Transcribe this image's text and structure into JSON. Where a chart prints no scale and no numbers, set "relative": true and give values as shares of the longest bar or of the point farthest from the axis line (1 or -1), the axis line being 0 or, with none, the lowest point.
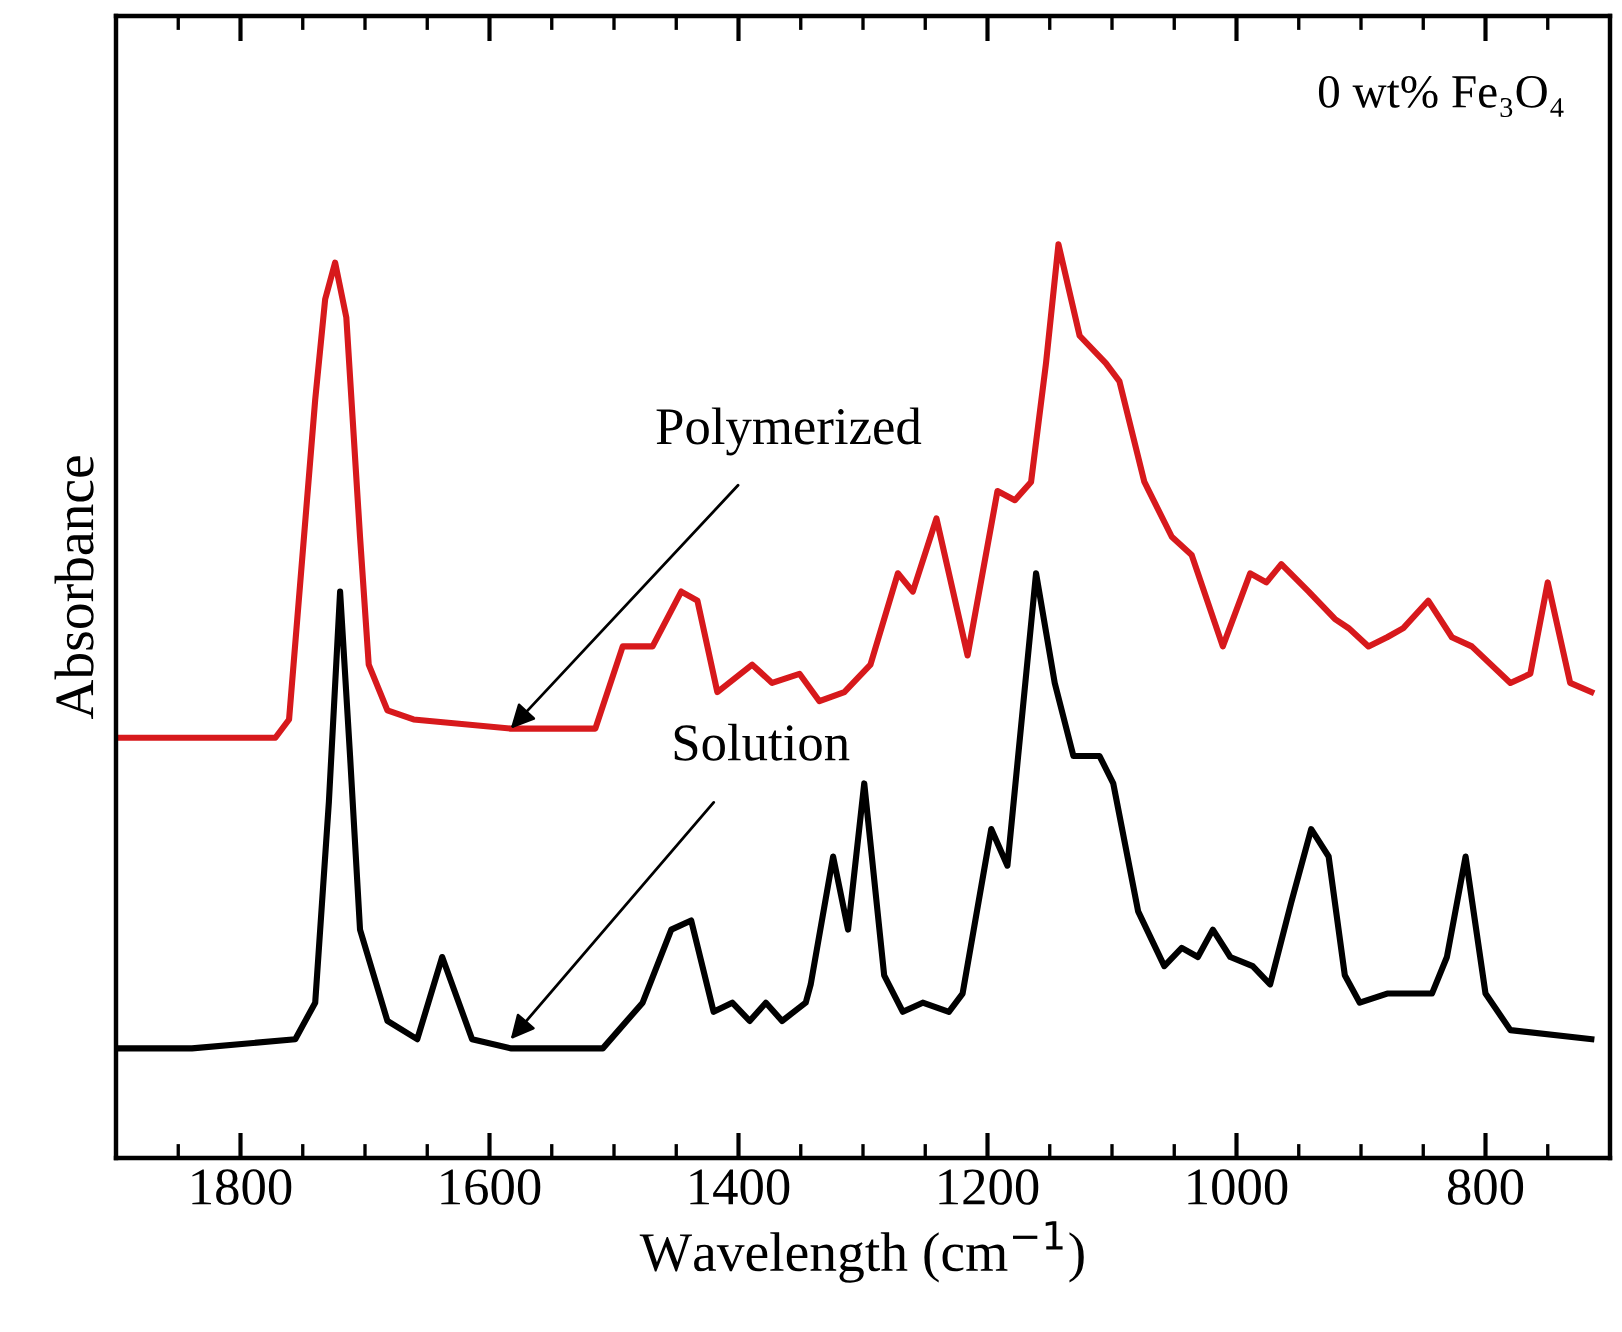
{
  "chart_data": {
    "type": "line",
    "relative": true,
    "xlabel": "Wavelength (cm$^{−1}$)",
    "ylabel": "Absorbance",
    "xlim": [
      1900,
      700
    ],
    "xticks": [
      1800,
      1600,
      1400,
      1200,
      1000,
      800
    ],
    "tick_labels": "x",
    "grid": false,
    "legend": false,
    "marker": "none",
    "line_style": "solid",
    "annotations": [
      "0 wt% Fe₃O₄",
      {
        "text": "Polymerized",
        "x": 1583,
        "y": 0.47
      },
      {
        "text": "Solution",
        "x": 1583,
        "y": 0.13
      }
    ],
    "series": [
      {
        "color": "#d7191c",
        "x": [
          1900,
          1772,
          1761,
          1740,
          1732,
          1724,
          1715,
          1704,
          1697,
          1682,
          1661,
          1583,
          1515,
          1493,
          1469,
          1446,
          1433,
          1417,
          1389,
          1373,
          1351,
          1335,
          1315,
          1294,
          1272,
          1260,
          1241,
          1216,
          1192,
          1178,
          1165,
          1153,
          1143,
          1126,
          1105,
          1094,
          1074,
          1052,
          1036,
          1011,
          989,
          976,
          964,
          942,
          921,
          910,
          894,
          879,
          866,
          846,
          827,
          811,
          780,
          764,
          750,
          732,
          715
        ],
        "values": [
          0.46,
          0.46,
          0.48,
          0.83,
          0.94,
          0.98,
          0.92,
          0.68,
          0.54,
          0.49,
          0.48,
          0.47,
          0.47,
          0.56,
          0.56,
          0.62,
          0.61,
          0.51,
          0.54,
          0.52,
          0.53,
          0.5,
          0.51,
          0.54,
          0.64,
          0.62,
          0.7,
          0.55,
          0.73,
          0.72,
          0.74,
          0.87,
          1.0,
          0.9,
          0.87,
          0.85,
          0.74,
          0.68,
          0.66,
          0.56,
          0.64,
          0.63,
          0.65,
          0.62,
          0.59,
          0.58,
          0.56,
          0.57,
          0.58,
          0.61,
          0.57,
          0.56,
          0.52,
          0.53,
          0.63,
          0.52,
          0.51
        ]
      },
      {
        "color": "#000000",
        "x": [
          1900,
          1839,
          1756,
          1740,
          1729,
          1720,
          1712,
          1704,
          1682,
          1658,
          1638,
          1614,
          1583,
          1509,
          1477,
          1454,
          1438,
          1420,
          1405,
          1391,
          1378,
          1365,
          1346,
          1342,
          1324,
          1312,
          1299,
          1283,
          1268,
          1252,
          1231,
          1220,
          1197,
          1184,
          1161,
          1146,
          1131,
          1110,
          1099,
          1079,
          1058,
          1044,
          1031,
          1019,
          1005,
          987,
          973,
          956,
          940,
          926,
          913,
          901,
          879,
          858,
          843,
          831,
          816,
          800,
          780,
          715
        ],
        "values": [
          0.12,
          0.12,
          0.13,
          0.17,
          0.39,
          0.62,
          0.44,
          0.25,
          0.15,
          0.13,
          0.22,
          0.13,
          0.12,
          0.12,
          0.17,
          0.25,
          0.26,
          0.16,
          0.17,
          0.15,
          0.17,
          0.15,
          0.17,
          0.19,
          0.33,
          0.25,
          0.41,
          0.2,
          0.16,
          0.17,
          0.16,
          0.18,
          0.36,
          0.32,
          0.64,
          0.52,
          0.44,
          0.44,
          0.41,
          0.27,
          0.21,
          0.23,
          0.22,
          0.25,
          0.22,
          0.21,
          0.19,
          0.28,
          0.36,
          0.33,
          0.2,
          0.17,
          0.18,
          0.18,
          0.18,
          0.22,
          0.33,
          0.18,
          0.14,
          0.13
        ]
      }
    ]
  }
}
